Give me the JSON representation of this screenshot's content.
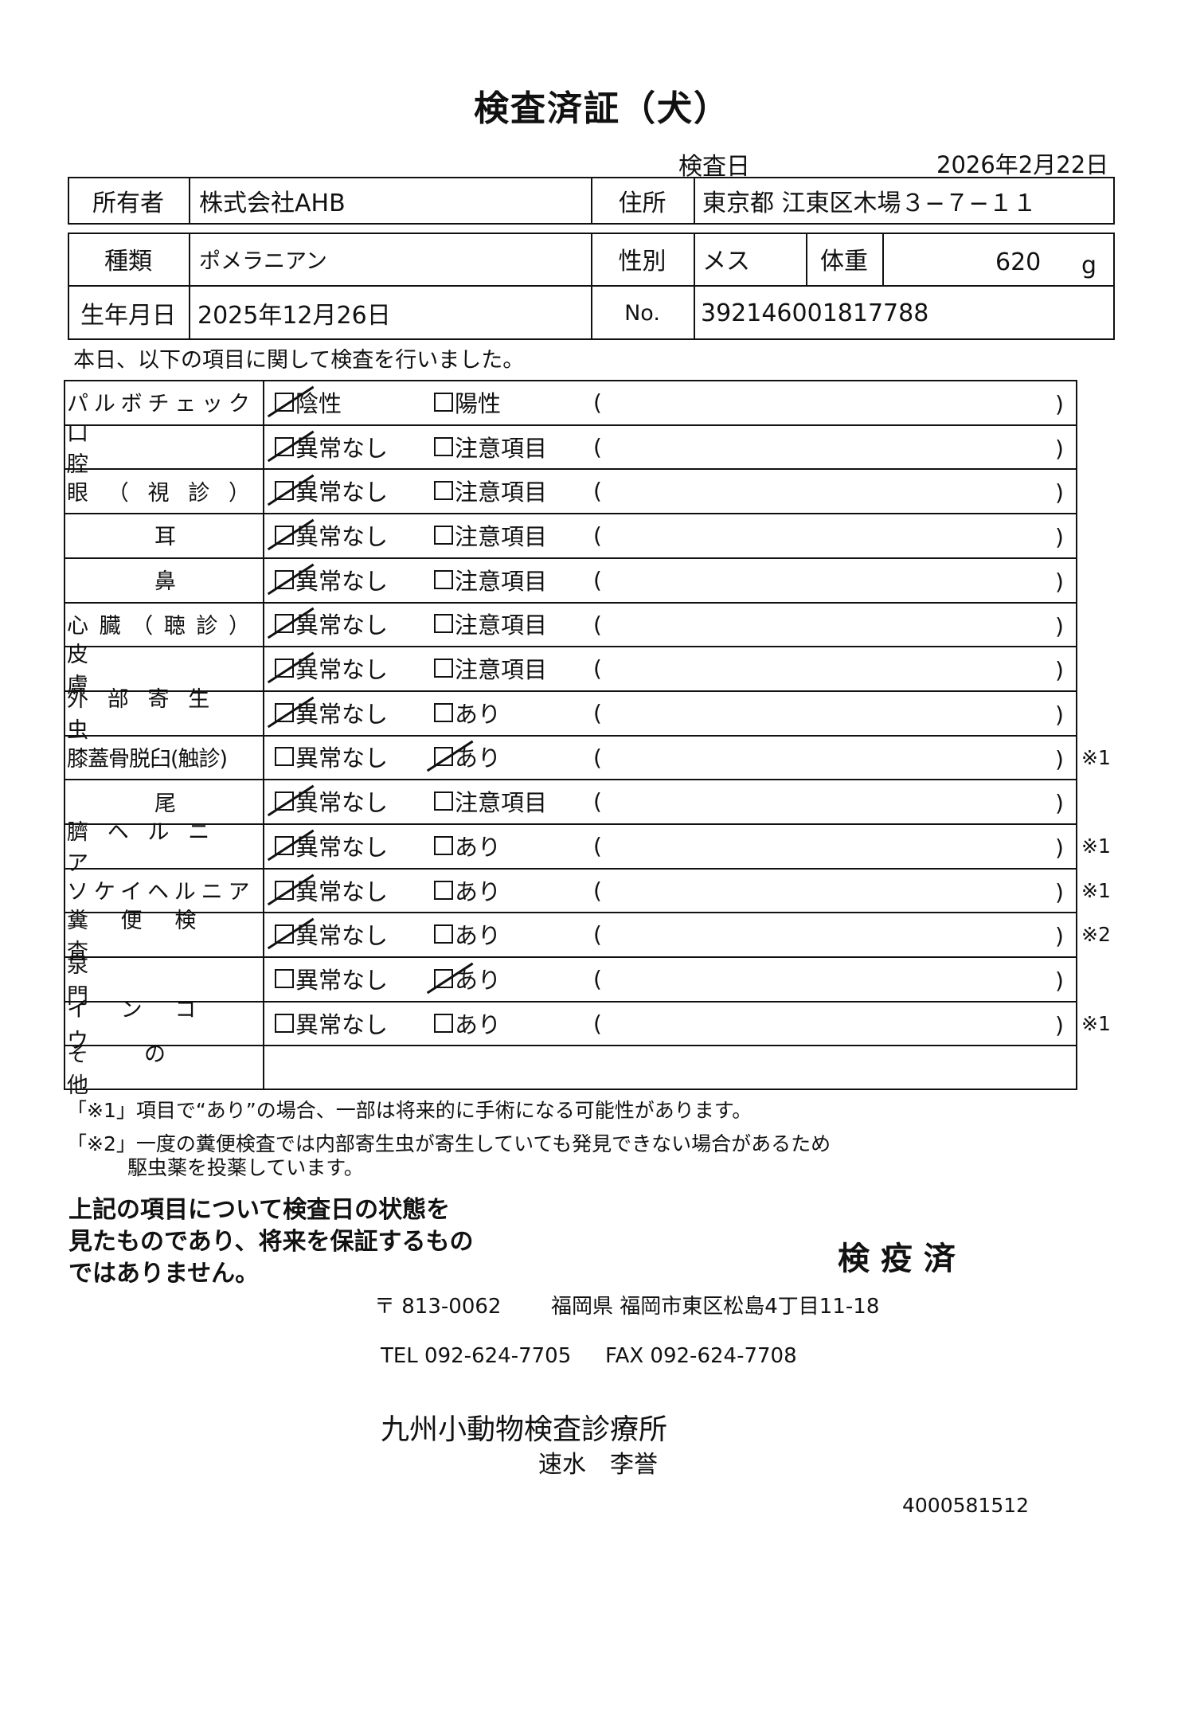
{
  "title": "検査済証（犬）",
  "inspection_date_label": "検査日",
  "inspection_date": "2026年2月22日",
  "owner": {
    "label": "所有者",
    "value": "株式会社AHB",
    "address_label": "住所",
    "address": "東京都 江東区木場３−７−１１"
  },
  "animal": {
    "breed_label": "種類",
    "breed": "ポメラニアン",
    "sex_label": "性別",
    "sex": "メス",
    "weight_label": "体重",
    "weight": "620",
    "weight_unit": "g",
    "birth_label": "生年月日",
    "birth": "2025年12月26日",
    "no_label": "No.",
    "no": "392146001817788"
  },
  "intro": "本日、以下の項目に関して検査を行いました。",
  "open_paren": "(",
  "close_paren": ")",
  "items": [
    {
      "label": "パルボチェック",
      "opt1": "陰性",
      "opt2": "陽性",
      "checked": 1,
      "note": ""
    },
    {
      "label": "口腔",
      "opt1": "異常なし",
      "opt2": "注意項目",
      "checked": 1,
      "note": ""
    },
    {
      "label": "眼（視診）",
      "opt1": "異常なし",
      "opt2": "注意項目",
      "checked": 1,
      "note": ""
    },
    {
      "label": "耳",
      "opt1": "異常なし",
      "opt2": "注意項目",
      "checked": 1,
      "note": ""
    },
    {
      "label": "鼻",
      "opt1": "異常なし",
      "opt2": "注意項目",
      "checked": 1,
      "note": ""
    },
    {
      "label": "心臓（聴診）",
      "opt1": "異常なし",
      "opt2": "注意項目",
      "checked": 1,
      "note": ""
    },
    {
      "label": "皮膚",
      "opt1": "異常なし",
      "opt2": "注意項目",
      "checked": 1,
      "note": ""
    },
    {
      "label": "外部寄生虫",
      "opt1": "異常なし",
      "opt2": "あり",
      "checked": 1,
      "note": ""
    },
    {
      "label": "膝蓋骨脱臼(触診)",
      "opt1": "異常なし",
      "opt2": "あり",
      "checked": 2,
      "note": "※1"
    },
    {
      "label": "尾",
      "opt1": "異常なし",
      "opt2": "注意項目",
      "checked": 1,
      "note": ""
    },
    {
      "label": "臍ヘルニア",
      "opt1": "異常なし",
      "opt2": "あり",
      "checked": 1,
      "note": "※1"
    },
    {
      "label": "ソケイヘルニア",
      "opt1": "異常なし",
      "opt2": "あり",
      "checked": 1,
      "note": "※1"
    },
    {
      "label": "糞便検査",
      "opt1": "異常なし",
      "opt2": "あり",
      "checked": 1,
      "note": "※2"
    },
    {
      "label": "泉門",
      "opt1": "異常なし",
      "opt2": "あり",
      "checked": 2,
      "note": ""
    },
    {
      "label": "インコウ",
      "opt1": "異常なし",
      "opt2": "あり",
      "checked": 0,
      "note": "※1"
    }
  ],
  "other_label": "その他",
  "footnote1": "「※1」項目で“あり”の場合、一部は将来的に手術になる可能性があります。",
  "footnote2a": "「※2」一度の糞便検査では内部寄生虫が寄生していても発見できない場合があるため",
  "footnote2b": "駆虫薬を投薬しています。",
  "disclaimer": [
    "上記の項目について検査日の状態を",
    "見たものであり、将来を保証するもの",
    "ではありません。"
  ],
  "stamp": "検 疫 済",
  "postal": "〒 813-0062",
  "clinic_address": "福岡県 福岡市東区松島4丁目11-18",
  "tel": "TEL 092-624-7705",
  "fax": "FAX 092-624-7708",
  "clinic_name": "九州小動物検査診療所",
  "doctor": "速水　李誉",
  "doc_number": "4000581512"
}
